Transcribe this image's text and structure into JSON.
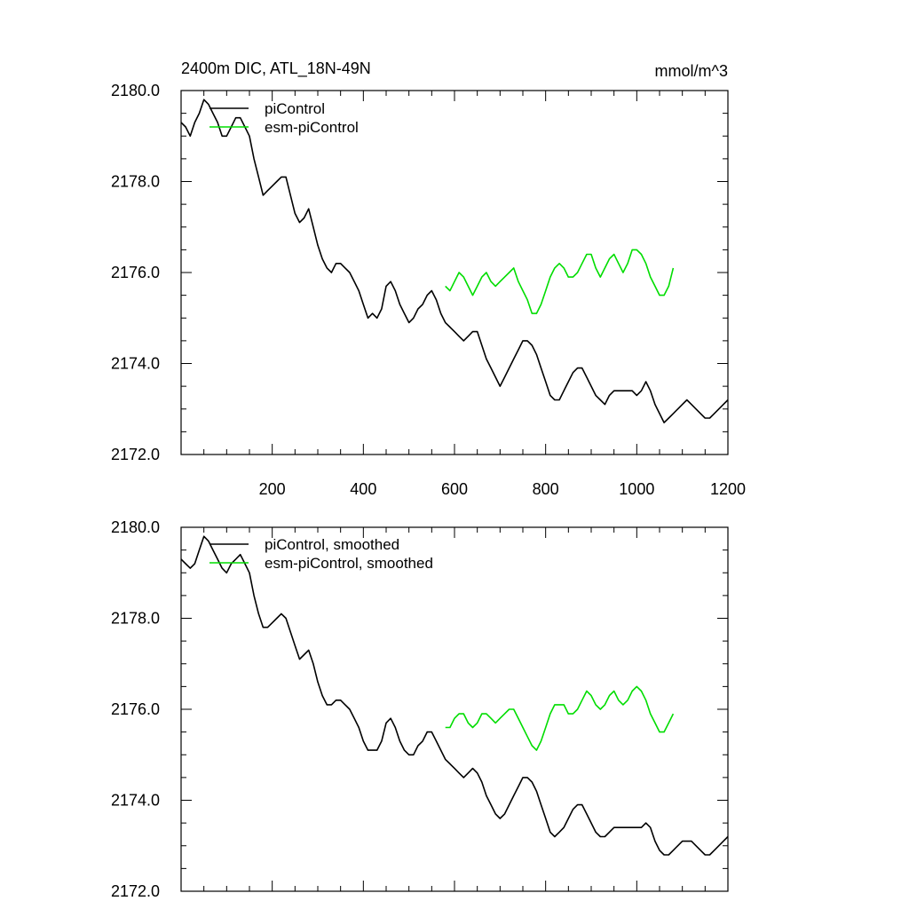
{
  "header": {
    "title": "2400m DIC, ATL_18N-49N",
    "units": "mmol/m^3"
  },
  "colors": {
    "piControl": "#000000",
    "esm_piControl": "#00dd00",
    "axis": "#000000"
  },
  "chart_data": [
    {
      "type": "line",
      "xlim": [
        0,
        1200
      ],
      "ylim": [
        2172.0,
        2180.0
      ],
      "x_ticks": [
        200,
        400,
        600,
        800,
        1000,
        1200
      ],
      "x_tick_labels": [
        "200",
        "400",
        "600",
        "800",
        "1000",
        "1200"
      ],
      "y_ticks": [
        2172.0,
        2174.0,
        2176.0,
        2178.0,
        2180.0
      ],
      "y_tick_labels": [
        "2172.0",
        "2174.0",
        "2176.0",
        "2178.0",
        "2180.0"
      ],
      "grid": false,
      "legend_position": "top-left",
      "series": [
        {
          "name": "piControl",
          "x": [
            0,
            10,
            20,
            30,
            40,
            50,
            60,
            70,
            80,
            90,
            100,
            110,
            120,
            130,
            140,
            150,
            160,
            170,
            180,
            190,
            200,
            210,
            220,
            230,
            240,
            250,
            260,
            270,
            280,
            290,
            300,
            310,
            320,
            330,
            340,
            350,
            360,
            370,
            380,
            390,
            400,
            410,
            420,
            430,
            440,
            450,
            460,
            470,
            480,
            490,
            500,
            510,
            520,
            530,
            540,
            550,
            560,
            570,
            580,
            590,
            600,
            610,
            620,
            630,
            640,
            650,
            660,
            670,
            680,
            690,
            700,
            710,
            720,
            730,
            740,
            750,
            760,
            770,
            780,
            790,
            800,
            810,
            820,
            830,
            840,
            850,
            860,
            870,
            880,
            890,
            900,
            910,
            920,
            930,
            940,
            950,
            960,
            970,
            980,
            990,
            1000,
            1010,
            1020,
            1030,
            1040,
            1050,
            1060,
            1070,
            1080,
            1090,
            1100,
            1110,
            1120,
            1130,
            1140,
            1150,
            1160,
            1170,
            1180,
            1190,
            1200
          ],
          "values": [
            2179.3,
            2179.2,
            2179.0,
            2179.3,
            2179.5,
            2179.8,
            2179.7,
            2179.5,
            2179.3,
            2179.0,
            2179.0,
            2179.2,
            2179.4,
            2179.4,
            2179.2,
            2179.0,
            2178.5,
            2178.1,
            2177.7,
            2177.8,
            2177.9,
            2178.0,
            2178.1,
            2178.1,
            2177.7,
            2177.3,
            2177.1,
            2177.2,
            2177.4,
            2177.0,
            2176.6,
            2176.3,
            2176.1,
            2176.0,
            2176.2,
            2176.2,
            2176.1,
            2176.0,
            2175.8,
            2175.6,
            2175.3,
            2175.0,
            2175.1,
            2175.0,
            2175.2,
            2175.7,
            2175.8,
            2175.6,
            2175.3,
            2175.1,
            2174.9,
            2175.0,
            2175.2,
            2175.3,
            2175.5,
            2175.6,
            2175.4,
            2175.1,
            2174.9,
            2174.8,
            2174.7,
            2174.6,
            2174.5,
            2174.6,
            2174.7,
            2174.7,
            2174.4,
            2174.1,
            2173.9,
            2173.7,
            2173.5,
            2173.7,
            2173.9,
            2174.1,
            2174.3,
            2174.5,
            2174.5,
            2174.4,
            2174.2,
            2173.9,
            2173.6,
            2173.3,
            2173.2,
            2173.2,
            2173.4,
            2173.6,
            2173.8,
            2173.9,
            2173.9,
            2173.7,
            2173.5,
            2173.3,
            2173.2,
            2173.1,
            2173.3,
            2173.4,
            2173.4,
            2173.4,
            2173.4,
            2173.4,
            2173.3,
            2173.4,
            2173.6,
            2173.4,
            2173.1,
            2172.9,
            2172.7,
            2172.8,
            2172.9,
            2173.0,
            2173.1,
            2173.2,
            2173.1,
            2173.0,
            2172.9,
            2172.8,
            2172.8,
            2172.9,
            2173.0,
            2173.1,
            2173.2
          ],
          "color": "#000000"
        },
        {
          "name": "esm-piControl",
          "x": [
            580,
            590,
            600,
            610,
            620,
            630,
            640,
            650,
            660,
            670,
            680,
            690,
            700,
            710,
            720,
            730,
            740,
            750,
            760,
            770,
            780,
            790,
            800,
            810,
            820,
            830,
            840,
            850,
            860,
            870,
            880,
            890,
            900,
            910,
            920,
            930,
            940,
            950,
            960,
            970,
            980,
            990,
            1000,
            1010,
            1020,
            1030,
            1040,
            1050,
            1060,
            1070,
            1080
          ],
          "values": [
            2175.7,
            2175.6,
            2175.8,
            2176.0,
            2175.9,
            2175.7,
            2175.5,
            2175.7,
            2175.9,
            2176.0,
            2175.8,
            2175.7,
            2175.8,
            2175.9,
            2176.0,
            2176.1,
            2175.8,
            2175.6,
            2175.4,
            2175.1,
            2175.1,
            2175.3,
            2175.6,
            2175.9,
            2176.1,
            2176.2,
            2176.1,
            2175.9,
            2175.9,
            2176.0,
            2176.2,
            2176.4,
            2176.4,
            2176.1,
            2175.9,
            2176.1,
            2176.3,
            2176.4,
            2176.2,
            2176.0,
            2176.2,
            2176.5,
            2176.5,
            2176.4,
            2176.2,
            2175.9,
            2175.7,
            2175.5,
            2175.5,
            2175.7,
            2176.1
          ],
          "color": "#00dd00"
        }
      ]
    },
    {
      "type": "line",
      "xlim": [
        0,
        1200
      ],
      "ylim": [
        2172.0,
        2180.0
      ],
      "y_ticks": [
        2172.0,
        2174.0,
        2176.0,
        2178.0,
        2180.0
      ],
      "y_tick_labels": [
        "2172.0",
        "2174.0",
        "2176.0",
        "2178.0",
        "2180.0"
      ],
      "grid": false,
      "legend_position": "top-left",
      "series": [
        {
          "name": "piControl, smoothed",
          "x": [
            0,
            10,
            20,
            30,
            40,
            50,
            60,
            70,
            80,
            90,
            100,
            110,
            120,
            130,
            140,
            150,
            160,
            170,
            180,
            190,
            200,
            210,
            220,
            230,
            240,
            250,
            260,
            270,
            280,
            290,
            300,
            310,
            320,
            330,
            340,
            350,
            360,
            370,
            380,
            390,
            400,
            410,
            420,
            430,
            440,
            450,
            460,
            470,
            480,
            490,
            500,
            510,
            520,
            530,
            540,
            550,
            560,
            570,
            580,
            590,
            600,
            610,
            620,
            630,
            640,
            650,
            660,
            670,
            680,
            690,
            700,
            710,
            720,
            730,
            740,
            750,
            760,
            770,
            780,
            790,
            800,
            810,
            820,
            830,
            840,
            850,
            860,
            870,
            880,
            890,
            900,
            910,
            920,
            930,
            940,
            950,
            960,
            970,
            980,
            990,
            1000,
            1010,
            1020,
            1030,
            1040,
            1050,
            1060,
            1070,
            1080,
            1090,
            1100,
            1110,
            1120,
            1130,
            1140,
            1150,
            1160,
            1170,
            1180,
            1190,
            1200
          ],
          "values": [
            2179.3,
            2179.2,
            2179.1,
            2179.2,
            2179.5,
            2179.8,
            2179.7,
            2179.5,
            2179.3,
            2179.1,
            2179.0,
            2179.2,
            2179.3,
            2179.4,
            2179.2,
            2179.0,
            2178.5,
            2178.1,
            2177.8,
            2177.8,
            2177.9,
            2178.0,
            2178.1,
            2178.0,
            2177.7,
            2177.4,
            2177.1,
            2177.2,
            2177.3,
            2177.0,
            2176.6,
            2176.3,
            2176.1,
            2176.1,
            2176.2,
            2176.2,
            2176.1,
            2176.0,
            2175.8,
            2175.6,
            2175.3,
            2175.1,
            2175.1,
            2175.1,
            2175.3,
            2175.7,
            2175.8,
            2175.6,
            2175.3,
            2175.1,
            2175.0,
            2175.0,
            2175.2,
            2175.3,
            2175.5,
            2175.5,
            2175.3,
            2175.1,
            2174.9,
            2174.8,
            2174.7,
            2174.6,
            2174.5,
            2174.6,
            2174.7,
            2174.6,
            2174.4,
            2174.1,
            2173.9,
            2173.7,
            2173.6,
            2173.7,
            2173.9,
            2174.1,
            2174.3,
            2174.5,
            2174.5,
            2174.4,
            2174.2,
            2173.9,
            2173.6,
            2173.3,
            2173.2,
            2173.3,
            2173.4,
            2173.6,
            2173.8,
            2173.9,
            2173.9,
            2173.7,
            2173.5,
            2173.3,
            2173.2,
            2173.2,
            2173.3,
            2173.4,
            2173.4,
            2173.4,
            2173.4,
            2173.4,
            2173.4,
            2173.4,
            2173.5,
            2173.4,
            2173.1,
            2172.9,
            2172.8,
            2172.8,
            2172.9,
            2173.0,
            2173.1,
            2173.1,
            2173.1,
            2173.0,
            2172.9,
            2172.8,
            2172.8,
            2172.9,
            2173.0,
            2173.1,
            2173.2
          ],
          "color": "#000000"
        },
        {
          "name": "esm-piControl, smoothed",
          "x": [
            580,
            590,
            600,
            610,
            620,
            630,
            640,
            650,
            660,
            670,
            680,
            690,
            700,
            710,
            720,
            730,
            740,
            750,
            760,
            770,
            780,
            790,
            800,
            810,
            820,
            830,
            840,
            850,
            860,
            870,
            880,
            890,
            900,
            910,
            920,
            930,
            940,
            950,
            960,
            970,
            980,
            990,
            1000,
            1010,
            1020,
            1030,
            1040,
            1050,
            1060,
            1070,
            1080
          ],
          "values": [
            2175.6,
            2175.6,
            2175.8,
            2175.9,
            2175.9,
            2175.7,
            2175.6,
            2175.7,
            2175.9,
            2175.9,
            2175.8,
            2175.7,
            2175.8,
            2175.9,
            2176.0,
            2176.0,
            2175.8,
            2175.6,
            2175.4,
            2175.2,
            2175.1,
            2175.3,
            2175.6,
            2175.9,
            2176.1,
            2176.1,
            2176.1,
            2175.9,
            2175.9,
            2176.0,
            2176.2,
            2176.4,
            2176.3,
            2176.1,
            2176.0,
            2176.1,
            2176.3,
            2176.4,
            2176.2,
            2176.1,
            2176.2,
            2176.4,
            2176.5,
            2176.4,
            2176.2,
            2175.9,
            2175.7,
            2175.5,
            2175.5,
            2175.7,
            2175.9
          ],
          "color": "#00dd00"
        }
      ]
    }
  ]
}
